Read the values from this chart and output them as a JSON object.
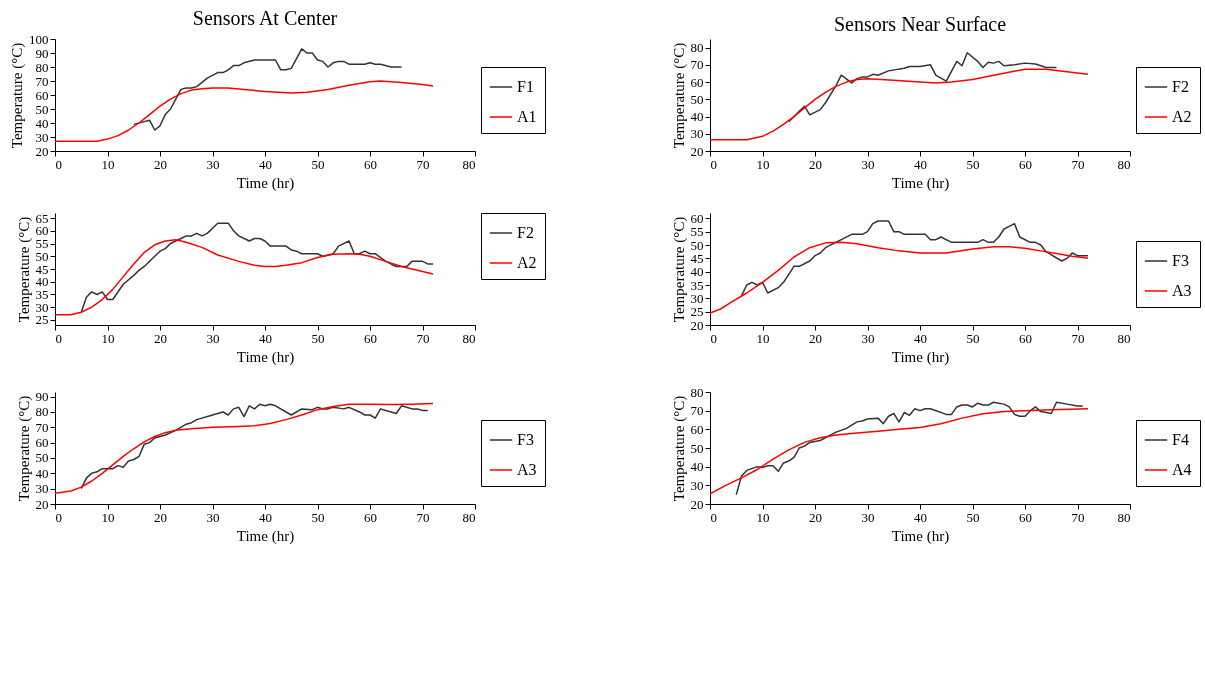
{
  "chart_data": [
    {
      "type": "line",
      "title": "Sensors At Center",
      "xlabel": "Time (hr)",
      "ylabel": "Temperature (°C)",
      "xlim": [
        0,
        80
      ],
      "xticks": [
        0,
        10,
        20,
        30,
        40,
        50,
        60,
        70,
        80
      ],
      "ylim": [
        20,
        100
      ],
      "yticks": [
        20,
        30,
        40,
        50,
        60,
        70,
        80,
        90,
        100
      ],
      "legend": "bottom right",
      "line_style": "solid",
      "series": [
        {
          "name": "F1",
          "color": "#333333",
          "x": [
            15,
            17,
            18,
            19,
            20,
            21,
            22,
            24,
            25,
            26,
            27,
            29,
            31,
            32,
            33,
            34,
            35,
            36,
            38,
            42,
            43,
            44,
            45,
            47,
            48,
            49,
            50,
            51,
            52,
            53,
            54,
            55,
            56,
            59,
            60,
            61,
            62,
            64,
            66
          ],
          "values": [
            39,
            41,
            42,
            35,
            38,
            46,
            50,
            64,
            65,
            65,
            66,
            72,
            76,
            76,
            78,
            81,
            81,
            83,
            85,
            85,
            78,
            78,
            79,
            93,
            90,
            90,
            85,
            84,
            80,
            83,
            84,
            84,
            82,
            82,
            83,
            82,
            82,
            80,
            80
          ]
        },
        {
          "name": "A1",
          "color": "#ff0000",
          "x": [
            0,
            8,
            10,
            12,
            14,
            16,
            18,
            20,
            22,
            24,
            26,
            28,
            30,
            33,
            36,
            40,
            45,
            48,
            52,
            56,
            60,
            62,
            66,
            70,
            72
          ],
          "values": [
            27,
            27,
            28.5,
            31,
            35,
            40,
            46,
            52,
            57,
            61,
            63.5,
            64.5,
            65,
            65,
            64,
            62.5,
            61.5,
            62,
            64,
            67,
            69.5,
            70,
            69,
            67.5,
            66.5
          ]
        }
      ]
    },
    {
      "type": "line",
      "title": "Sensors Near Surface",
      "xlabel": "Time (hr)",
      "ylabel": "Temperature (°C)",
      "xlim": [
        0,
        80
      ],
      "xticks": [
        0,
        10,
        20,
        30,
        40,
        50,
        60,
        70,
        80
      ],
      "ylim": [
        20,
        85
      ],
      "yticks": [
        20,
        30,
        40,
        50,
        60,
        70,
        80
      ],
      "legend": "bottom right",
      "line_style": "solid",
      "series": [
        {
          "name": "F2",
          "color": "#333333",
          "x": [
            15,
            17,
            18,
            19,
            21,
            22,
            24,
            25,
            27,
            28,
            29,
            30,
            31,
            32,
            34,
            37,
            38,
            40,
            42,
            43,
            45,
            47,
            48,
            49,
            51,
            52,
            53,
            54,
            55,
            56,
            58,
            60,
            62,
            64,
            66
          ],
          "values": [
            37,
            43,
            46,
            41,
            44,
            48,
            58,
            64,
            59.5,
            62,
            63,
            63,
            64.5,
            64,
            66.5,
            68,
            69,
            69,
            70,
            64,
            60.5,
            72,
            69.5,
            77,
            72,
            68.5,
            71.5,
            71,
            72,
            69.5,
            70,
            71,
            70.5,
            68.5,
            68.5
          ]
        },
        {
          "name": "A2",
          "color": "#ff0000",
          "x": [
            0,
            7,
            10,
            12,
            14,
            16,
            18,
            20,
            22,
            24,
            26,
            28,
            30,
            35,
            40,
            43,
            46,
            50,
            55,
            60,
            64,
            68,
            72
          ],
          "values": [
            26.5,
            26.5,
            28.5,
            31.5,
            35.5,
            40,
            45,
            50,
            54,
            57.5,
            60,
            61.5,
            62,
            61,
            60,
            59.5,
            60,
            61.5,
            64.5,
            67.5,
            67.5,
            66,
            64.5
          ]
        }
      ]
    },
    {
      "type": "line",
      "xlabel": "Time (hr)",
      "ylabel": "Temperature (°C)",
      "xlim": [
        0,
        80
      ],
      "xticks": [
        0,
        10,
        20,
        30,
        40,
        50,
        60,
        70,
        80
      ],
      "ylim": [
        23,
        67
      ],
      "yticks": [
        25,
        30,
        35,
        40,
        45,
        50,
        55,
        60,
        65
      ],
      "legend": "top right",
      "line_style": "solid",
      "series": [
        {
          "name": "F2",
          "color": "#333333",
          "x": [
            5,
            6,
            7,
            8,
            9,
            10,
            11,
            13,
            15,
            16,
            17,
            19,
            20,
            21,
            22,
            24,
            25,
            26,
            27,
            28,
            29,
            30,
            31,
            33,
            34,
            35,
            37,
            38,
            39,
            40,
            41,
            44,
            45,
            46,
            47,
            50,
            51,
            53,
            54,
            56,
            57,
            58,
            59,
            60,
            61,
            63,
            65,
            67,
            68,
            70,
            71,
            72
          ],
          "values": [
            28,
            34,
            36,
            35,
            36,
            33,
            33,
            39,
            42.5,
            44.5,
            46,
            50,
            52,
            53,
            55,
            57,
            58,
            58,
            59,
            58,
            59,
            61,
            63,
            63,
            60,
            58,
            56,
            57,
            57,
            56,
            54,
            54,
            52.5,
            52,
            51,
            51,
            50,
            51,
            54,
            56,
            51,
            51,
            52,
            51,
            51,
            48,
            46,
            46,
            48,
            48,
            47,
            47
          ]
        },
        {
          "name": "A2",
          "color": "#ff0000",
          "x": [
            0,
            2,
            3,
            5,
            7,
            9,
            11,
            13,
            15,
            17,
            19,
            21,
            23,
            25,
            28,
            31,
            35,
            38,
            40,
            42,
            44,
            47,
            50,
            53,
            56,
            58,
            60,
            63,
            66,
            69,
            72
          ],
          "values": [
            27,
            27,
            27,
            28,
            30,
            33,
            37,
            42,
            47,
            51.5,
            54.5,
            56,
            56.5,
            55.5,
            53.5,
            50.5,
            48,
            46.5,
            46,
            46,
            46.5,
            47.5,
            49.5,
            50.8,
            51,
            50.8,
            50,
            48,
            46,
            44.5,
            43
          ]
        }
      ]
    },
    {
      "type": "line",
      "xlabel": "Time (hr)",
      "ylabel": "Temperature (°C)",
      "xlim": [
        0,
        80
      ],
      "xticks": [
        0,
        10,
        20,
        30,
        40,
        50,
        60,
        70,
        80
      ],
      "ylim": [
        20,
        62
      ],
      "yticks": [
        20,
        25,
        30,
        35,
        40,
        45,
        50,
        55,
        60
      ],
      "legend": "bottom right",
      "line_style": "solid",
      "series": [
        {
          "name": "F3",
          "color": "#333333",
          "x": [
            6,
            7,
            8,
            9,
            10,
            11,
            13,
            14,
            16,
            17,
            19,
            20,
            21,
            22,
            25,
            27,
            29,
            30,
            31,
            32,
            34,
            35,
            36,
            37,
            41,
            42,
            43,
            44,
            46,
            51,
            52,
            53,
            54,
            55,
            56,
            57,
            58,
            59,
            61,
            62,
            63,
            64,
            67,
            68,
            69,
            70,
            72
          ],
          "values": [
            31,
            35,
            36,
            35,
            36,
            32,
            34,
            36,
            42,
            42,
            44,
            46,
            47,
            49,
            52,
            54,
            54,
            55,
            58,
            59,
            59,
            55,
            55,
            54,
            54,
            52,
            52,
            53,
            51,
            51,
            52,
            51,
            51,
            53,
            56,
            57,
            58,
            53,
            51,
            51,
            50,
            47.5,
            44,
            45,
            47,
            46,
            46
          ]
        },
        {
          "name": "A3",
          "color": "#ff0000",
          "x": [
            0,
            2,
            4,
            7,
            10,
            13,
            16,
            19,
            22,
            25,
            28,
            32,
            36,
            40,
            45,
            50,
            54,
            57,
            60,
            63,
            66,
            69,
            72
          ],
          "values": [
            24.5,
            26,
            28.5,
            32,
            36,
            40.5,
            45.5,
            49,
            50.8,
            51,
            50.5,
            49,
            47.8,
            47,
            47,
            48.5,
            49.3,
            49.3,
            48.8,
            47.8,
            46.8,
            45.8,
            45
          ]
        }
      ]
    },
    {
      "type": "line",
      "xlabel": "Time (hr)",
      "ylabel": "Temperature (°C)",
      "xlim": [
        0,
        80
      ],
      "xticks": [
        0,
        10,
        20,
        30,
        40,
        50,
        60,
        70,
        80
      ],
      "ylim": [
        20,
        93
      ],
      "yticks": [
        20,
        30,
        40,
        50,
        60,
        70,
        80,
        90
      ],
      "legend": "bottom right",
      "line_style": "solid",
      "series": [
        {
          "name": "F3",
          "color": "#333333",
          "x": [
            5,
            6,
            7,
            8,
            9,
            11,
            12,
            13,
            14,
            15,
            16,
            17,
            18,
            19,
            21,
            23,
            25,
            26,
            27,
            30,
            32,
            33,
            34,
            35,
            36,
            37,
            38,
            39,
            40,
            41,
            42,
            45,
            47,
            49,
            50,
            51,
            52,
            53,
            55,
            56,
            58,
            59,
            60,
            61,
            62,
            63,
            65,
            66,
            68,
            69,
            70,
            71
          ],
          "values": [
            30,
            37,
            40,
            41,
            43,
            43,
            45,
            44,
            48,
            49,
            51,
            59,
            60,
            63,
            65,
            68,
            72,
            73,
            75,
            78,
            80,
            78,
            82,
            83,
            77,
            84,
            82,
            85,
            84,
            85,
            84,
            78,
            82,
            81.5,
            83,
            82,
            82,
            83,
            82,
            83,
            80,
            78,
            78,
            76,
            82,
            81,
            79,
            84,
            82,
            82,
            81,
            81
          ]
        },
        {
          "name": "A3",
          "color": "#ff0000",
          "x": [
            0,
            3,
            5,
            7,
            9,
            11,
            13,
            15,
            17,
            19,
            21,
            23,
            26,
            30,
            35,
            38,
            41,
            44,
            47,
            50,
            53,
            56,
            60,
            64,
            68,
            72
          ],
          "values": [
            27,
            28.5,
            31,
            35,
            40,
            45.5,
            51,
            56,
            60.5,
            64,
            66.5,
            68,
            69,
            70,
            70.5,
            71,
            72.5,
            75,
            78,
            81.5,
            83.5,
            85,
            85,
            84.8,
            85,
            85.5
          ]
        }
      ]
    },
    {
      "type": "line",
      "xlabel": "Time (hr)",
      "ylabel": "Temperature (°C)",
      "xlim": [
        0,
        80
      ],
      "xticks": [
        0,
        10,
        20,
        30,
        40,
        50,
        60,
        70,
        80
      ],
      "ylim": [
        20,
        80
      ],
      "yticks": [
        20,
        30,
        40,
        50,
        60,
        70,
        80
      ],
      "legend": "bottom right",
      "line_style": "solid",
      "series": [
        {
          "name": "F4",
          "color": "#333333",
          "x": [
            5,
            6,
            7,
            9,
            10,
            11,
            12,
            13,
            14,
            15,
            16,
            17,
            18,
            19,
            21,
            23,
            24,
            26,
            28,
            29,
            30,
            32,
            33,
            34,
            35,
            36,
            37,
            38,
            39,
            40,
            41,
            42,
            45,
            46,
            47,
            48,
            49,
            50,
            51,
            52,
            53,
            54,
            55,
            56,
            57,
            58,
            59,
            60,
            61,
            62,
            63,
            65,
            66,
            68,
            70,
            71
          ],
          "values": [
            25,
            35,
            38,
            40,
            39.5,
            40.5,
            40.5,
            37.5,
            42,
            43,
            45,
            50,
            51,
            53,
            54,
            57,
            58.5,
            60.5,
            64,
            64.5,
            65.5,
            66,
            63,
            67,
            68.5,
            64,
            69,
            67.5,
            71,
            70,
            71,
            71,
            68,
            68,
            72,
            73,
            73,
            72,
            74,
            73,
            73,
            74.5,
            74,
            73.5,
            72,
            68,
            67,
            67,
            70,
            72,
            69.5,
            68.5,
            74.5,
            73.5,
            72.5,
            72.5
          ]
        },
        {
          "name": "A4",
          "color": "#ff0000",
          "x": [
            0,
            3,
            6,
            9,
            12,
            15,
            18,
            21,
            24,
            28,
            32,
            36,
            40,
            44,
            48,
            52,
            56,
            60,
            65,
            72
          ],
          "values": [
            25.5,
            30,
            34,
            38.5,
            44,
            49,
            53,
            55.5,
            57,
            58,
            59,
            60,
            61,
            63,
            66,
            68.3,
            69.5,
            70,
            70.5,
            71
          ]
        }
      ]
    }
  ]
}
